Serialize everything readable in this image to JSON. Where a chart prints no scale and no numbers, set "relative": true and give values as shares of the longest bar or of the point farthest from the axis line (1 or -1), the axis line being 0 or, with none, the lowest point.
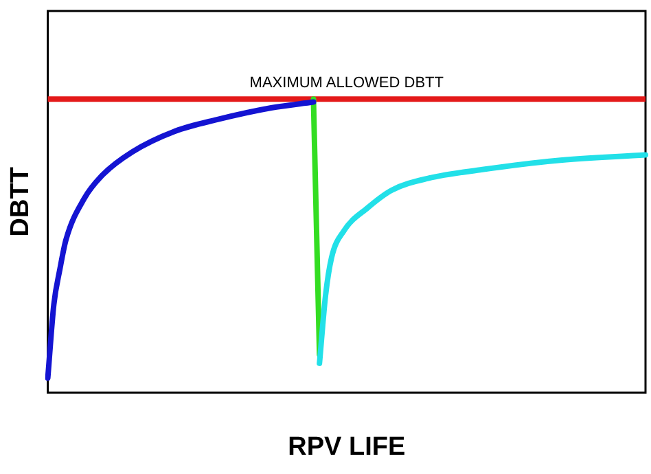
{
  "chart_data": {
    "type": "line",
    "xlabel": "RPV LIFE",
    "ylabel": "DBTT",
    "relative": true,
    "grid": false,
    "legend": false,
    "marker": "none",
    "line_style": "solid",
    "categories": [
      null,
      null,
      null,
      null,
      null,
      null,
      null,
      null,
      null,
      null,
      null,
      null,
      null,
      null,
      null,
      null,
      null,
      null,
      null,
      null,
      null,
      null,
      null,
      null,
      null,
      null,
      null,
      null,
      null,
      null,
      null,
      null,
      null,
      null,
      null,
      null,
      null,
      null,
      null,
      null,
      null,
      null,
      null,
      null,
      null,
      null,
      null,
      null,
      null,
      null,
      null,
      null,
      null,
      null,
      null,
      null,
      null,
      null,
      null,
      null,
      null,
      null,
      null,
      null,
      null,
      null,
      null,
      null,
      null,
      null,
      null,
      null,
      null,
      null,
      null,
      null,
      null,
      null,
      null,
      null,
      null,
      null,
      null,
      null,
      null,
      null,
      null,
      null,
      null,
      null,
      null,
      null,
      null,
      null,
      null,
      null,
      null,
      null,
      null,
      null
    ],
    "series": [
      {
        "color": "#1414d2",
        "values": [
          0.05,
          0.3,
          0.42,
          0.52,
          null,
          null,
          0.66,
          null,
          null,
          0.74,
          null,
          null,
          null,
          null,
          0.82,
          null,
          null,
          null,
          null,
          null,
          null,
          0.89,
          null,
          null,
          null,
          null,
          null,
          null,
          0.93,
          null,
          null,
          null,
          null,
          null,
          null,
          null,
          null,
          0.97,
          null,
          null,
          null,
          null,
          null,
          null,
          0.99,
          null,
          null,
          null,
          null,
          null,
          null,
          null,
          null,
          null,
          null,
          null,
          null,
          null,
          null,
          null,
          null,
          null,
          null,
          null,
          null,
          null,
          null,
          null,
          null,
          null,
          null,
          null,
          null,
          null,
          null,
          null,
          null,
          null,
          null,
          null,
          null,
          null,
          null,
          null,
          null,
          null,
          null,
          null,
          null,
          null,
          null,
          null,
          null,
          null,
          null,
          null,
          null,
          null,
          null,
          null
        ]
      },
      {
        "color": "#22e0e8",
        "values": [
          null,
          null,
          null,
          null,
          null,
          null,
          null,
          null,
          null,
          null,
          null,
          null,
          null,
          null,
          null,
          null,
          null,
          null,
          null,
          null,
          null,
          null,
          null,
          null,
          null,
          null,
          null,
          null,
          null,
          null,
          null,
          null,
          null,
          null,
          null,
          null,
          null,
          null,
          null,
          null,
          null,
          null,
          null,
          null,
          null,
          0.1,
          0.33,
          0.46,
          null,
          0.55,
          null,
          null,
          null,
          0.63,
          null,
          null,
          null,
          0.69,
          null,
          null,
          null,
          null,
          null,
          0.73,
          null,
          null,
          null,
          null,
          null,
          null,
          null,
          null,
          0.76,
          null,
          null,
          null,
          null,
          null,
          null,
          null,
          null,
          null,
          null,
          null,
          0.79,
          null,
          null,
          null,
          null,
          null,
          null,
          null,
          null,
          null,
          null,
          null,
          null,
          null,
          null,
          0.81
        ]
      },
      {
        "color": "#33dd22",
        "values": [
          null,
          null,
          null,
          null,
          null,
          null,
          null,
          null,
          null,
          null,
          null,
          null,
          null,
          null,
          null,
          null,
          null,
          null,
          null,
          null,
          null,
          null,
          null,
          null,
          null,
          null,
          null,
          null,
          null,
          null,
          null,
          null,
          null,
          null,
          null,
          null,
          null,
          null,
          null,
          null,
          null,
          null,
          null,
          null,
          1,
          0.13,
          null,
          null,
          null,
          null,
          null,
          null,
          null,
          null,
          null,
          null,
          null,
          null,
          null,
          null,
          null,
          null,
          null,
          null,
          null,
          null,
          null,
          null,
          null,
          null,
          null,
          null,
          null,
          null,
          null,
          null,
          null,
          null,
          null,
          null,
          null,
          null,
          null,
          null,
          null,
          null,
          null,
          null,
          null,
          null,
          null,
          null,
          null,
          null,
          null,
          null,
          null,
          null,
          null,
          null
        ]
      }
    ],
    "ref_lines": [
      {
        "axis": "y",
        "value": 1,
        "label": "MAXIMUM ALLOWED DBTT",
        "color": "#e41a1a"
      }
    ]
  }
}
